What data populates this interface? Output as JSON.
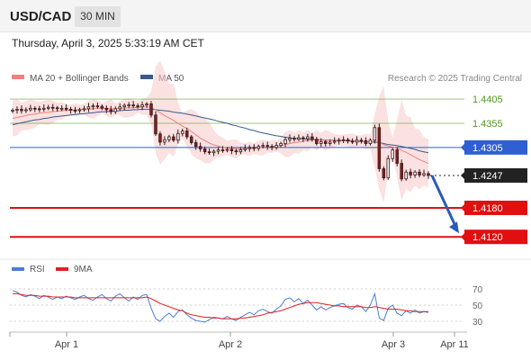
{
  "header": {
    "symbol": "USD/CAD",
    "timeframe": "30 MIN"
  },
  "datetime": "Thursday, April 3, 2025 5:33:19 AM CET",
  "legend": {
    "items": [
      {
        "label": "MA 20 + Bollinger Bands",
        "color": "#f08080"
      },
      {
        "label": "MA 50",
        "color": "#3a5a8c"
      }
    ],
    "credit": "Research © 2025 Trading Central"
  },
  "rsi_legend": {
    "items": [
      {
        "label": "RSI",
        "color": "#4a7fd4"
      },
      {
        "label": "9MA",
        "color": "#e02020"
      }
    ]
  },
  "chart_data": [
    {
      "type": "line",
      "panel": "price",
      "ylim": [
        1.4085,
        1.4435
      ],
      "x_ticks": [
        "Apr 1",
        "Apr 2",
        "Apr 3",
        "Apr 11"
      ],
      "levels": [
        {
          "label": "1.4405",
          "value": 1.4405,
          "color": "#4f9a1e",
          "kind": "resistance"
        },
        {
          "label": "1.4355",
          "value": 1.4355,
          "color": "#4f9a1e",
          "kind": "resistance"
        },
        {
          "label": "1.4305",
          "value": 1.4305,
          "color": "#2f5fd0",
          "kind": "pivot"
        },
        {
          "label": "1.4247",
          "value": 1.4247,
          "color": "#222222",
          "kind": "last"
        },
        {
          "label": "1.4180",
          "value": 1.418,
          "color": "#e01010",
          "kind": "support"
        },
        {
          "label": "1.4120",
          "value": 1.412,
          "color": "#e01010",
          "kind": "support"
        }
      ],
      "close_series": [
        1.4382,
        1.4384,
        1.4381,
        1.4383,
        1.4386,
        1.4385,
        1.4384,
        1.4386,
        1.4388,
        1.4387,
        1.4385,
        1.4386,
        1.4384,
        1.4382,
        1.4381,
        1.4383,
        1.4385,
        1.4389,
        1.4391,
        1.439,
        1.4386,
        1.4383,
        1.4379,
        1.4385,
        1.4389,
        1.4392,
        1.4393,
        1.4391,
        1.4389,
        1.4393,
        1.4395,
        1.4372,
        1.4333,
        1.4316,
        1.4321,
        1.4327,
        1.432,
        1.4334,
        1.4339,
        1.4327,
        1.4315,
        1.4307,
        1.4302,
        1.4296,
        1.4294,
        1.4297,
        1.43,
        1.4299,
        1.4301,
        1.4298,
        1.4296,
        1.43,
        1.4303,
        1.4305,
        1.4303,
        1.4307,
        1.4309,
        1.4307,
        1.4305,
        1.4309,
        1.4313,
        1.4321,
        1.4324,
        1.4322,
        1.4325,
        1.4323,
        1.4327,
        1.4322,
        1.4313,
        1.4317,
        1.4313,
        1.4316,
        1.4318,
        1.432,
        1.4321,
        1.4318,
        1.4316,
        1.432,
        1.4319,
        1.4313,
        1.432,
        1.4346,
        1.4261,
        1.4242,
        1.4282,
        1.43,
        1.4272,
        1.424,
        1.4254,
        1.4248,
        1.4254,
        1.4248,
        1.4251,
        1.4247
      ],
      "ma20": [
        1.4365,
        1.4367,
        1.4369,
        1.4371,
        1.4373,
        1.4374,
        1.4376,
        1.4377,
        1.4378,
        1.4379,
        1.438,
        1.4381,
        1.4382,
        1.4382,
        1.4383,
        1.4383,
        1.4384,
        1.4384,
        1.4385,
        1.4386,
        1.4386,
        1.4386,
        1.4385,
        1.4385,
        1.4386,
        1.4386,
        1.4387,
        1.4387,
        1.4388,
        1.4389,
        1.439,
        1.4387,
        1.4383,
        1.4377,
        1.4371,
        1.4366,
        1.4361,
        1.4355,
        1.4349,
        1.4344,
        1.4338,
        1.4331,
        1.4324,
        1.4319,
        1.4314,
        1.431,
        1.4308,
        1.4305,
        1.4304,
        1.4303,
        1.4302,
        1.4302,
        1.4302,
        1.4302,
        1.4303,
        1.4304,
        1.4305,
        1.4306,
        1.4307,
        1.4308,
        1.4309,
        1.4311,
        1.4313,
        1.4315,
        1.4316,
        1.4318,
        1.4319,
        1.432,
        1.432,
        1.432,
        1.432,
        1.432,
        1.432,
        1.432,
        1.432,
        1.432,
        1.4319,
        1.4319,
        1.4318,
        1.4317,
        1.4317,
        1.4318,
        1.4315,
        1.4311,
        1.4308,
        1.4306,
        1.4303,
        1.4299,
        1.4295,
        1.429,
        1.4285,
        1.428,
        1.4276,
        1.4272
      ],
      "ma50": [
        1.4352,
        1.4354,
        1.4356,
        1.4358,
        1.436,
        1.4362,
        1.4363,
        1.4365,
        1.4366,
        1.4368,
        1.4369,
        1.437,
        1.4371,
        1.4372,
        1.4373,
        1.4374,
        1.4375,
        1.4376,
        1.4377,
        1.4378,
        1.4379,
        1.4379,
        1.438,
        1.438,
        1.4381,
        1.4382,
        1.4382,
        1.4383,
        1.4383,
        1.4384,
        1.4384,
        1.4384,
        1.4383,
        1.4382,
        1.4381,
        1.438,
        1.4378,
        1.4377,
        1.4376,
        1.4374,
        1.4372,
        1.437,
        1.4368,
        1.4366,
        1.4364,
        1.4362,
        1.4359,
        1.4357,
        1.4355,
        1.4352,
        1.435,
        1.4347,
        1.4345,
        1.4342,
        1.434,
        1.4337,
        1.4335,
        1.4333,
        1.4331,
        1.4329,
        1.4328,
        1.4326,
        1.4325,
        1.4324,
        1.4323,
        1.4323,
        1.4322,
        1.4322,
        1.4321,
        1.4321,
        1.432,
        1.432,
        1.432,
        1.4319,
        1.4319,
        1.4319,
        1.4318,
        1.4318,
        1.4317,
        1.4317,
        1.4316,
        1.4316,
        1.4315,
        1.4313,
        1.4311,
        1.431,
        1.4309,
        1.4307,
        1.4305,
        1.4303,
        1.4301,
        1.4298,
        1.4296,
        1.4294
      ],
      "forecast": {
        "from": 1.4247,
        "to": 1.412
      }
    },
    {
      "type": "line",
      "panel": "rsi",
      "ylim": [
        20,
        80
      ],
      "y_ticks": [
        "70",
        "50",
        "30"
      ],
      "rsi": [
        68,
        66,
        62,
        60,
        63,
        61,
        58,
        62,
        60,
        57,
        60,
        58,
        61,
        59,
        57,
        60,
        62,
        58,
        56,
        60,
        63,
        58,
        55,
        61,
        64,
        59,
        55,
        60,
        57,
        62,
        63,
        46,
        33,
        30,
        36,
        40,
        35,
        42,
        44,
        38,
        34,
        31,
        30,
        29,
        32,
        35,
        34,
        33,
        36,
        33,
        31,
        35,
        38,
        41,
        38,
        43,
        45,
        42,
        40,
        45,
        49,
        57,
        59,
        54,
        58,
        52,
        56,
        50,
        44,
        48,
        44,
        47,
        49,
        51,
        52,
        47,
        45,
        50,
        48,
        42,
        50,
        64,
        34,
        31,
        46,
        50,
        40,
        37,
        43,
        40,
        44,
        40,
        42,
        41
      ],
      "ma9": [
        64,
        64,
        63,
        62,
        62,
        62,
        61,
        61,
        61,
        60,
        60,
        60,
        60,
        60,
        59,
        59,
        59,
        59,
        59,
        59,
        59,
        59,
        59,
        59,
        59,
        59,
        59,
        59,
        59,
        59,
        60,
        58,
        55,
        52,
        50,
        48,
        46,
        44,
        43,
        40,
        38,
        37,
        36,
        35,
        35,
        34,
        34,
        33,
        33,
        33,
        33,
        34,
        34,
        35,
        36,
        37,
        38,
        40,
        41,
        42,
        43,
        45,
        47,
        49,
        51,
        52,
        53,
        53,
        53,
        52,
        51,
        50,
        49,
        49,
        48,
        48,
        48,
        48,
        48,
        47,
        47,
        48,
        47,
        46,
        45,
        45,
        45,
        44,
        43,
        43,
        42,
        42,
        42,
        42
      ]
    }
  ]
}
